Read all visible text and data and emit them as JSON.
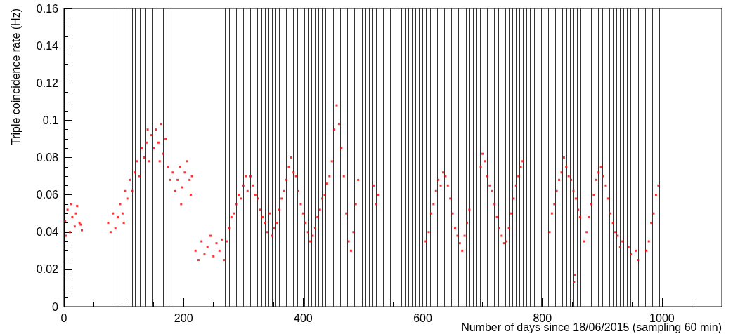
{
  "chart_data": {
    "type": "scatter",
    "xlabel": "Number of days since 18/06/2015 (sampling 60 min)",
    "ylabel": "Triple coincidence rate (Hz)",
    "xlim": [
      0,
      1100
    ],
    "xticks": [
      0,
      200,
      400,
      600,
      800,
      1000
    ],
    "ylim": [
      0,
      0.16
    ],
    "yticks": [
      0,
      0.02,
      0.04,
      0.06,
      0.08,
      0.1,
      0.12,
      0.14,
      0.16
    ],
    "grid": false,
    "marker": "square",
    "series": [
      {
        "color": "#ff0000",
        "x": [
          2,
          4,
          6,
          10,
          12,
          14,
          18,
          20,
          22,
          26,
          28,
          30,
          74,
          78,
          82,
          86,
          90,
          94,
          98,
          100,
          102,
          106,
          110,
          114,
          118,
          122,
          126,
          130,
          134,
          138,
          140,
          142,
          146,
          150,
          154,
          158,
          160,
          162,
          166,
          170,
          174,
          178,
          182,
          186,
          190,
          194,
          196,
          198,
          202,
          206,
          210,
          212,
          214,
          220,
          225,
          230,
          235,
          240,
          245,
          250,
          255,
          260,
          265,
          268,
          272,
          276,
          280,
          284,
          288,
          292,
          296,
          300,
          304,
          307,
          312,
          316,
          320,
          324,
          328,
          332,
          336,
          340,
          344,
          348,
          352,
          356,
          360,
          364,
          368,
          372,
          376,
          380,
          384,
          388,
          392,
          396,
          400,
          404,
          408,
          412,
          416,
          420,
          424,
          428,
          432,
          436,
          440,
          444,
          448,
          452,
          456,
          460,
          464,
          468,
          472,
          476,
          480,
          484,
          488,
          492,
          518,
          522,
          525,
          605,
          610,
          614,
          618,
          622,
          626,
          630,
          634,
          638,
          642,
          646,
          650,
          654,
          658,
          662,
          666,
          670,
          674,
          678,
          697,
          700,
          704,
          708,
          712,
          716,
          720,
          724,
          728,
          732,
          736,
          740,
          744,
          748,
          752,
          756,
          760,
          764,
          767,
          812,
          816,
          820,
          824,
          828,
          832,
          836,
          840,
          844,
          848,
          852,
          853,
          855,
          856,
          860,
          863,
          870,
          874,
          878,
          882,
          886,
          890,
          894,
          898,
          902,
          906,
          910,
          914,
          918,
          922,
          926,
          930,
          934,
          944,
          948,
          956,
          960,
          974,
          978,
          982,
          986,
          990,
          994
        ],
        "values": [
          0.046,
          0.038,
          0.052,
          0.04,
          0.055,
          0.048,
          0.043,
          0.05,
          0.054,
          0.045,
          0.044,
          0.041,
          0.045,
          0.04,
          0.05,
          0.042,
          0.048,
          0.055,
          0.05,
          0.045,
          0.062,
          0.058,
          0.068,
          0.062,
          0.072,
          0.078,
          0.07,
          0.085,
          0.08,
          0.088,
          0.095,
          0.078,
          0.092,
          0.085,
          0.095,
          0.088,
          0.078,
          0.098,
          0.082,
          0.09,
          0.075,
          0.068,
          0.072,
          0.062,
          0.068,
          0.075,
          0.055,
          0.064,
          0.072,
          0.078,
          0.068,
          0.06,
          0.07,
          0.03,
          0.025,
          0.035,
          0.028,
          0.032,
          0.038,
          0.027,
          0.034,
          0.03,
          0.036,
          0.025,
          0.035,
          0.042,
          0.048,
          0.05,
          0.055,
          0.06,
          0.058,
          0.065,
          0.07,
          0.062,
          0.07,
          0.065,
          0.06,
          0.058,
          0.052,
          0.048,
          0.045,
          0.04,
          0.05,
          0.038,
          0.042,
          0.045,
          0.052,
          0.058,
          0.062,
          0.068,
          0.075,
          0.08,
          0.072,
          0.07,
          0.062,
          0.055,
          0.05,
          0.045,
          0.04,
          0.035,
          0.038,
          0.042,
          0.048,
          0.052,
          0.058,
          0.06,
          0.066,
          0.07,
          0.078,
          0.095,
          0.108,
          0.098,
          0.085,
          0.07,
          0.05,
          0.035,
          0.03,
          0.04,
          0.055,
          0.068,
          0.065,
          0.055,
          0.06,
          0.035,
          0.04,
          0.05,
          0.055,
          0.062,
          0.068,
          0.065,
          0.072,
          0.07,
          0.065,
          0.058,
          0.05,
          0.042,
          0.038,
          0.034,
          0.03,
          0.038,
          0.045,
          0.052,
          0.075,
          0.082,
          0.078,
          0.07,
          0.065,
          0.062,
          0.055,
          0.048,
          0.042,
          0.038,
          0.034,
          0.035,
          0.042,
          0.05,
          0.058,
          0.065,
          0.07,
          0.075,
          0.078,
          0.04,
          0.05,
          0.055,
          0.062,
          0.068,
          0.072,
          0.08,
          0.075,
          0.07,
          0.068,
          0.062,
          0.013,
          0.017,
          0.058,
          0.052,
          0.048,
          0.035,
          0.04,
          0.048,
          0.055,
          0.06,
          0.068,
          0.072,
          0.075,
          0.07,
          0.065,
          0.058,
          0.05,
          0.045,
          0.04,
          0.038,
          0.032,
          0.035,
          0.032,
          0.028,
          0.03,
          0.025,
          0.03,
          0.035,
          0.045,
          0.05,
          0.06,
          0.065
        ]
      }
    ],
    "ref_lines": [
      {
        "axis": "x",
        "value": 89,
        "color": "#333333"
      },
      {
        "axis": "x",
        "value": 97,
        "color": "#333333"
      },
      {
        "axis": "x",
        "value": 105,
        "color": "#333333"
      },
      {
        "axis": "x",
        "value": 114,
        "color": "#333333"
      },
      {
        "axis": "x",
        "value": 119,
        "color": "#333333"
      },
      {
        "axis": "x",
        "value": 127,
        "color": "#333333"
      },
      {
        "axis": "x",
        "value": 137,
        "color": "#333333"
      },
      {
        "axis": "x",
        "value": 147,
        "color": "#333333"
      },
      {
        "axis": "x",
        "value": 156,
        "color": "#333333"
      },
      {
        "axis": "x",
        "value": 166,
        "color": "#333333"
      },
      {
        "axis": "x",
        "value": 175,
        "color": "#333333"
      },
      {
        "axis": "x",
        "value": 270,
        "color": "#333333"
      },
      {
        "axis": "x",
        "value": 276,
        "color": "#333333"
      },
      {
        "axis": "x",
        "value": 282,
        "color": "#333333"
      },
      {
        "axis": "x",
        "value": 288,
        "color": "#333333"
      },
      {
        "axis": "x",
        "value": 294,
        "color": "#333333"
      },
      {
        "axis": "x",
        "value": 300,
        "color": "#333333"
      },
      {
        "axis": "x",
        "value": 306,
        "color": "#333333"
      },
      {
        "axis": "x",
        "value": 312,
        "color": "#333333"
      },
      {
        "axis": "x",
        "value": 318,
        "color": "#333333"
      },
      {
        "axis": "x",
        "value": 324,
        "color": "#333333"
      },
      {
        "axis": "x",
        "value": 330,
        "color": "#333333"
      },
      {
        "axis": "x",
        "value": 336,
        "color": "#333333"
      },
      {
        "axis": "x",
        "value": 342,
        "color": "#333333"
      },
      {
        "axis": "x",
        "value": 348,
        "color": "#333333"
      },
      {
        "axis": "x",
        "value": 354,
        "color": "#333333"
      },
      {
        "axis": "x",
        "value": 360,
        "color": "#333333"
      },
      {
        "axis": "x",
        "value": 366,
        "color": "#333333"
      },
      {
        "axis": "x",
        "value": 372,
        "color": "#333333"
      },
      {
        "axis": "x",
        "value": 378,
        "color": "#333333"
      },
      {
        "axis": "x",
        "value": 384,
        "color": "#333333"
      },
      {
        "axis": "x",
        "value": 390,
        "color": "#333333"
      },
      {
        "axis": "x",
        "value": 396,
        "color": "#333333"
      },
      {
        "axis": "x",
        "value": 402,
        "color": "#333333"
      },
      {
        "axis": "x",
        "value": 408,
        "color": "#333333"
      },
      {
        "axis": "x",
        "value": 414,
        "color": "#333333"
      },
      {
        "axis": "x",
        "value": 420,
        "color": "#333333"
      },
      {
        "axis": "x",
        "value": 426,
        "color": "#333333"
      },
      {
        "axis": "x",
        "value": 432,
        "color": "#333333"
      },
      {
        "axis": "x",
        "value": 438,
        "color": "#333333"
      },
      {
        "axis": "x",
        "value": 444,
        "color": "#333333"
      },
      {
        "axis": "x",
        "value": 450,
        "color": "#333333"
      },
      {
        "axis": "x",
        "value": 456,
        "color": "#333333"
      },
      {
        "axis": "x",
        "value": 462,
        "color": "#333333"
      },
      {
        "axis": "x",
        "value": 468,
        "color": "#333333"
      },
      {
        "axis": "x",
        "value": 474,
        "color": "#333333"
      },
      {
        "axis": "x",
        "value": 480,
        "color": "#333333"
      },
      {
        "axis": "x",
        "value": 486,
        "color": "#333333"
      },
      {
        "axis": "x",
        "value": 492,
        "color": "#333333"
      },
      {
        "axis": "x",
        "value": 498,
        "color": "#333333"
      },
      {
        "axis": "x",
        "value": 504,
        "color": "#333333"
      },
      {
        "axis": "x",
        "value": 510,
        "color": "#333333"
      },
      {
        "axis": "x",
        "value": 516,
        "color": "#333333"
      },
      {
        "axis": "x",
        "value": 522,
        "color": "#333333"
      },
      {
        "axis": "x",
        "value": 528,
        "color": "#333333"
      },
      {
        "axis": "x",
        "value": 534,
        "color": "#333333"
      },
      {
        "axis": "x",
        "value": 540,
        "color": "#333333"
      },
      {
        "axis": "x",
        "value": 546,
        "color": "#333333"
      },
      {
        "axis": "x",
        "value": 552,
        "color": "#333333"
      },
      {
        "axis": "x",
        "value": 558,
        "color": "#333333"
      },
      {
        "axis": "x",
        "value": 564,
        "color": "#333333"
      },
      {
        "axis": "x",
        "value": 570,
        "color": "#333333"
      },
      {
        "axis": "x",
        "value": 576,
        "color": "#333333"
      },
      {
        "axis": "x",
        "value": 582,
        "color": "#333333"
      },
      {
        "axis": "x",
        "value": 588,
        "color": "#333333"
      },
      {
        "axis": "x",
        "value": 594,
        "color": "#333333"
      },
      {
        "axis": "x",
        "value": 600,
        "color": "#333333"
      },
      {
        "axis": "x",
        "value": 606,
        "color": "#333333"
      },
      {
        "axis": "x",
        "value": 612,
        "color": "#333333"
      },
      {
        "axis": "x",
        "value": 618,
        "color": "#333333"
      },
      {
        "axis": "x",
        "value": 624,
        "color": "#333333"
      },
      {
        "axis": "x",
        "value": 630,
        "color": "#333333"
      },
      {
        "axis": "x",
        "value": 636,
        "color": "#333333"
      },
      {
        "axis": "x",
        "value": 642,
        "color": "#333333"
      },
      {
        "axis": "x",
        "value": 648,
        "color": "#333333"
      },
      {
        "axis": "x",
        "value": 654,
        "color": "#333333"
      },
      {
        "axis": "x",
        "value": 660,
        "color": "#333333"
      },
      {
        "axis": "x",
        "value": 666,
        "color": "#333333"
      },
      {
        "axis": "x",
        "value": 672,
        "color": "#333333"
      },
      {
        "axis": "x",
        "value": 678,
        "color": "#333333"
      },
      {
        "axis": "x",
        "value": 684,
        "color": "#333333"
      },
      {
        "axis": "x",
        "value": 690,
        "color": "#333333"
      },
      {
        "axis": "x",
        "value": 696,
        "color": "#333333"
      },
      {
        "axis": "x",
        "value": 702,
        "color": "#333333"
      },
      {
        "axis": "x",
        "value": 708,
        "color": "#333333"
      },
      {
        "axis": "x",
        "value": 714,
        "color": "#333333"
      },
      {
        "axis": "x",
        "value": 720,
        "color": "#333333"
      },
      {
        "axis": "x",
        "value": 726,
        "color": "#333333"
      },
      {
        "axis": "x",
        "value": 732,
        "color": "#333333"
      },
      {
        "axis": "x",
        "value": 738,
        "color": "#333333"
      },
      {
        "axis": "x",
        "value": 744,
        "color": "#333333"
      },
      {
        "axis": "x",
        "value": 750,
        "color": "#333333"
      },
      {
        "axis": "x",
        "value": 756,
        "color": "#333333"
      },
      {
        "axis": "x",
        "value": 762,
        "color": "#333333"
      },
      {
        "axis": "x",
        "value": 768,
        "color": "#333333"
      },
      {
        "axis": "x",
        "value": 774,
        "color": "#333333"
      },
      {
        "axis": "x",
        "value": 780,
        "color": "#333333"
      },
      {
        "axis": "x",
        "value": 786,
        "color": "#333333"
      },
      {
        "axis": "x",
        "value": 792,
        "color": "#333333"
      },
      {
        "axis": "x",
        "value": 798,
        "color": "#333333"
      },
      {
        "axis": "x",
        "value": 804,
        "color": "#333333"
      },
      {
        "axis": "x",
        "value": 810,
        "color": "#333333"
      },
      {
        "axis": "x",
        "value": 816,
        "color": "#333333"
      },
      {
        "axis": "x",
        "value": 822,
        "color": "#333333"
      },
      {
        "axis": "x",
        "value": 828,
        "color": "#333333"
      },
      {
        "axis": "x",
        "value": 834,
        "color": "#333333"
      },
      {
        "axis": "x",
        "value": 840,
        "color": "#333333"
      },
      {
        "axis": "x",
        "value": 846,
        "color": "#333333"
      },
      {
        "axis": "x",
        "value": 852,
        "color": "#333333"
      },
      {
        "axis": "x",
        "value": 858,
        "color": "#333333"
      },
      {
        "axis": "x",
        "value": 864,
        "color": "#333333"
      },
      {
        "axis": "x",
        "value": 882,
        "color": "#333333"
      },
      {
        "axis": "x",
        "value": 888,
        "color": "#333333"
      },
      {
        "axis": "x",
        "value": 894,
        "color": "#333333"
      },
      {
        "axis": "x",
        "value": 900,
        "color": "#333333"
      },
      {
        "axis": "x",
        "value": 906,
        "color": "#333333"
      },
      {
        "axis": "x",
        "value": 912,
        "color": "#333333"
      },
      {
        "axis": "x",
        "value": 918,
        "color": "#333333"
      },
      {
        "axis": "x",
        "value": 924,
        "color": "#333333"
      },
      {
        "axis": "x",
        "value": 930,
        "color": "#333333"
      },
      {
        "axis": "x",
        "value": 936,
        "color": "#333333"
      },
      {
        "axis": "x",
        "value": 942,
        "color": "#333333"
      },
      {
        "axis": "x",
        "value": 948,
        "color": "#333333"
      },
      {
        "axis": "x",
        "value": 954,
        "color": "#333333"
      },
      {
        "axis": "x",
        "value": 960,
        "color": "#333333"
      },
      {
        "axis": "x",
        "value": 966,
        "color": "#333333"
      },
      {
        "axis": "x",
        "value": 972,
        "color": "#333333"
      },
      {
        "axis": "x",
        "value": 978,
        "color": "#333333"
      },
      {
        "axis": "x",
        "value": 984,
        "color": "#333333"
      },
      {
        "axis": "x",
        "value": 990,
        "color": "#333333"
      },
      {
        "axis": "x",
        "value": 996,
        "color": "#333333"
      }
    ]
  }
}
